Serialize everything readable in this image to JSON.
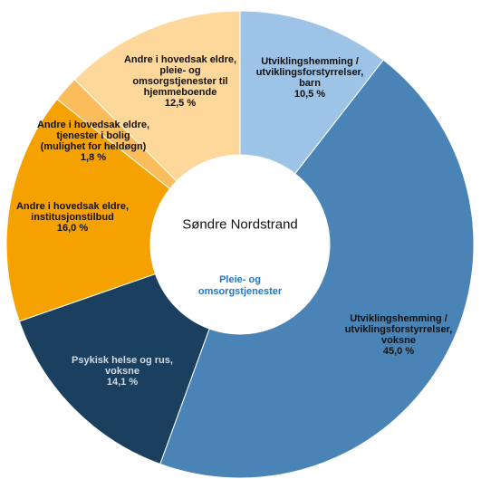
{
  "chart_data": {
    "type": "donut",
    "title": "Søndre Nordstrand",
    "subtitle": "Pleie- og omsorgstjenester",
    "categories": [
      "Utviklingshemming / utviklingsforstyrrelser, barn",
      "Utviklingshemming / utviklingsforstyrrelser, voksne",
      "Psykisk helse og rus, voksne",
      "Andre i hovedsak eldre, institusjonstilbud",
      "Andre i hovedsak eldre, tjenester i bolig (mulighet for heldøgn)",
      "Andre i hovedsak eldre, pleie- og omsorgstjenester til hjemmeboende"
    ],
    "values": [
      10.5,
      45.0,
      14.1,
      16.0,
      1.8,
      12.5
    ],
    "value_labels": [
      "10,5 %",
      "45,0 %",
      "14,1 %",
      "16,0 %",
      "1,8 %",
      "12,5 %"
    ],
    "colors": [
      "#9dc3e6",
      "#4a84b6",
      "#1b3f5e",
      "#f5a100",
      "#fbbd5c",
      "#fdd89a"
    ]
  }
}
